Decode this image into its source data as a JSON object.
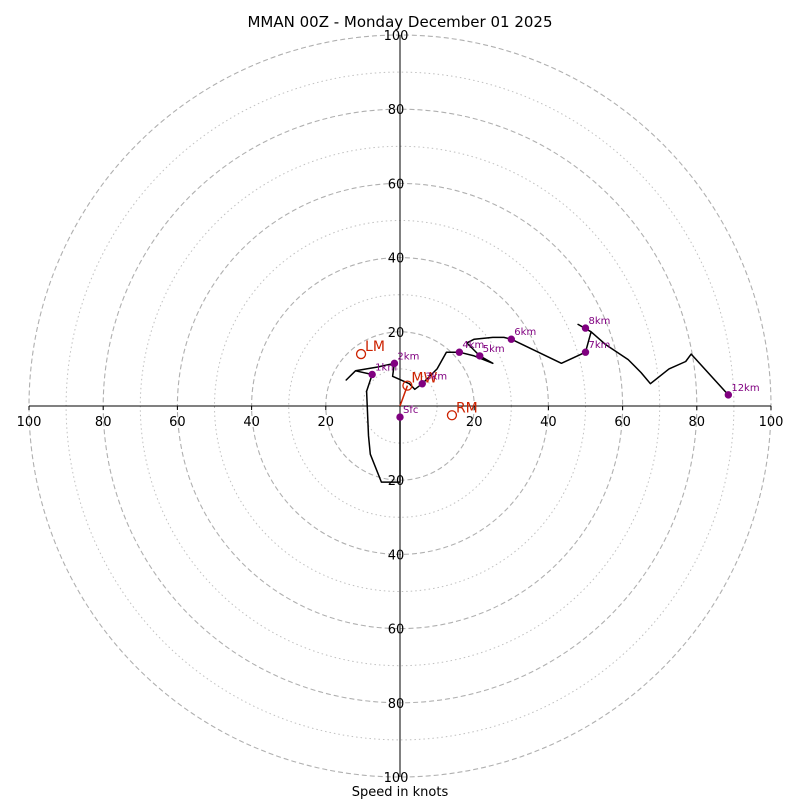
{
  "chart_data": {
    "type": "hodograph",
    "title": "MMAN 00Z - Monday December 01 2025",
    "xlabel": "Speed in knots",
    "units": "knots",
    "axis_range": [
      -100,
      100
    ],
    "rings_major": [
      20,
      40,
      60,
      80,
      100
    ],
    "rings_minor": [
      10,
      30,
      50,
      70,
      90
    ],
    "tick_labels": {
      "x": [
        "100",
        "80",
        "60",
        "40",
        "20",
        "20",
        "40",
        "60",
        "80",
        "100"
      ],
      "y": [
        "100",
        "80",
        "60",
        "40",
        "20",
        "20",
        "40",
        "60",
        "80",
        "100"
      ]
    },
    "tick_values": [
      -100,
      -80,
      -60,
      -40,
      -20,
      20,
      40,
      60,
      80,
      100
    ],
    "hodograph_line": [
      [
        0,
        -3
      ],
      [
        0,
        -20.5
      ],
      [
        -5,
        -20.5
      ],
      [
        -8,
        -13
      ],
      [
        -8.5,
        -8
      ],
      [
        -9,
        4
      ],
      [
        -7.5,
        8.5
      ],
      [
        -12,
        9.5
      ],
      [
        -14.5,
        7
      ],
      [
        -12,
        9.5
      ],
      [
        -6,
        10.5
      ],
      [
        -1.5,
        11.5
      ],
      [
        -2,
        8
      ],
      [
        2.5,
        6
      ],
      [
        4,
        4.5
      ],
      [
        6,
        6
      ],
      [
        10,
        10
      ],
      [
        12.5,
        14.5
      ],
      [
        16,
        14.5
      ],
      [
        20,
        13.5
      ],
      [
        25,
        11.5
      ],
      [
        21.5,
        13.5
      ],
      [
        18,
        17
      ],
      [
        20,
        18
      ],
      [
        25,
        18.5
      ],
      [
        28,
        18.5
      ],
      [
        30,
        18
      ],
      [
        43.5,
        11.5
      ],
      [
        50,
        14.5
      ],
      [
        51.5,
        20
      ],
      [
        48,
        22
      ],
      [
        51.5,
        20
      ],
      [
        55.5,
        16.5
      ],
      [
        61.5,
        12.5
      ],
      [
        65,
        9
      ],
      [
        67.5,
        6
      ],
      [
        72.5,
        10
      ],
      [
        77,
        12
      ],
      [
        78.5,
        14
      ],
      [
        88.5,
        3
      ]
    ],
    "height_markers": [
      {
        "label": "Sfc",
        "u": 0,
        "v": -3
      },
      {
        "label": "1km",
        "u": -7.5,
        "v": 8.5
      },
      {
        "label": "2km",
        "u": -1.5,
        "v": 11.5
      },
      {
        "label": "3km",
        "u": 6,
        "v": 6
      },
      {
        "label": "4km",
        "u": 16,
        "v": 14.5
      },
      {
        "label": "5km",
        "u": 21.5,
        "v": 13.5
      },
      {
        "label": "6km",
        "u": 30,
        "v": 18
      },
      {
        "label": "7km",
        "u": 50,
        "v": 14.5
      },
      {
        "label": "8km",
        "u": 50,
        "v": 21
      },
      {
        "label": "12km",
        "u": 88.5,
        "v": 3
      }
    ],
    "motion_points": [
      {
        "label": "LM",
        "u": -10.5,
        "v": 14
      },
      {
        "label": "MW",
        "u": 2,
        "v": 5.5
      },
      {
        "label": "RM",
        "u": 14,
        "v": -2.5
      }
    ],
    "mean_wind_vector": {
      "from": [
        0,
        0
      ],
      "to": [
        2,
        5.5
      ]
    },
    "colors": {
      "line": "#000000",
      "marker": "#800080",
      "motion": "#cc2200",
      "grid": "#b0b0b0",
      "axis": "#000000"
    }
  }
}
